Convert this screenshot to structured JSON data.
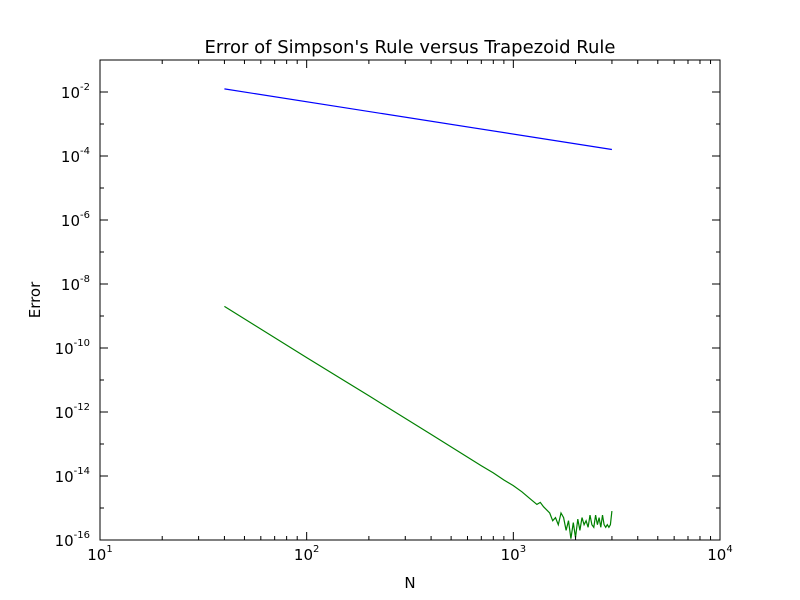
{
  "chart_data": {
    "type": "line",
    "title": "Error of Simpson's Rule versus Trapezoid Rule",
    "xlabel": "N",
    "ylabel": "Error",
    "x_scale": "log",
    "y_scale": "log",
    "xlim": [
      10,
      10000
    ],
    "ylim": [
      1e-16,
      0.1
    ],
    "grid": false,
    "x_ticks": [
      {
        "base": "10",
        "exp": "1",
        "value": 10
      },
      {
        "base": "10",
        "exp": "2",
        "value": 100
      },
      {
        "base": "10",
        "exp": "3",
        "value": 1000
      },
      {
        "base": "10",
        "exp": "4",
        "value": 10000
      }
    ],
    "y_ticks": [
      {
        "base": "10",
        "exp": "-2",
        "value": 0.01
      },
      {
        "base": "10",
        "exp": "-4",
        "value": 0.0001
      },
      {
        "base": "10",
        "exp": "-6",
        "value": 1e-06
      },
      {
        "base": "10",
        "exp": "-8",
        "value": 1e-08
      },
      {
        "base": "10",
        "exp": "-10",
        "value": 1e-10
      },
      {
        "base": "10",
        "exp": "-12",
        "value": 1e-12
      },
      {
        "base": "10",
        "exp": "-14",
        "value": 1e-14
      },
      {
        "base": "10",
        "exp": "-16",
        "value": 1e-16
      }
    ],
    "series": [
      {
        "color": "#0000ff",
        "x": [
          40,
          3000
        ],
        "y": [
          0.0125,
          0.00016
        ]
      },
      {
        "color": "#008000",
        "x": [
          40,
          100,
          200,
          400,
          700,
          800,
          900,
          1000,
          1100,
          1200,
          1300,
          1350,
          1400,
          1500,
          1550,
          1600,
          1650,
          1700,
          1750,
          1800,
          1850,
          1900,
          1950,
          2000,
          2050,
          2100,
          2150,
          2200,
          2250,
          2300,
          2350,
          2400,
          2450,
          2500,
          2550,
          2600,
          2650,
          2700,
          2750,
          2800,
          2850,
          2900,
          2950,
          3000
        ],
        "y": [
          2e-09,
          5e-11,
          3.2e-12,
          2e-13,
          2.1e-14,
          1.25e-14,
          7.5e-15,
          5e-15,
          3.2e-15,
          2e-15,
          1.3e-15,
          1.5e-15,
          1.1e-15,
          7e-16,
          4e-16,
          5e-16,
          3e-16,
          7e-16,
          5e-16,
          2e-16,
          4e-16,
          1.1e-16,
          3.5e-16,
          1.2e-16,
          4.5e-16,
          2e-16,
          5e-16,
          3e-16,
          4e-16,
          2.5e-16,
          6e-16,
          3e-16,
          2.5e-16,
          6e-16,
          3e-16,
          5e-16,
          2.5e-16,
          6e-16,
          3e-16,
          2.5e-16,
          3e-16,
          2.5e-16,
          3e-16,
          8e-16
        ]
      }
    ]
  }
}
